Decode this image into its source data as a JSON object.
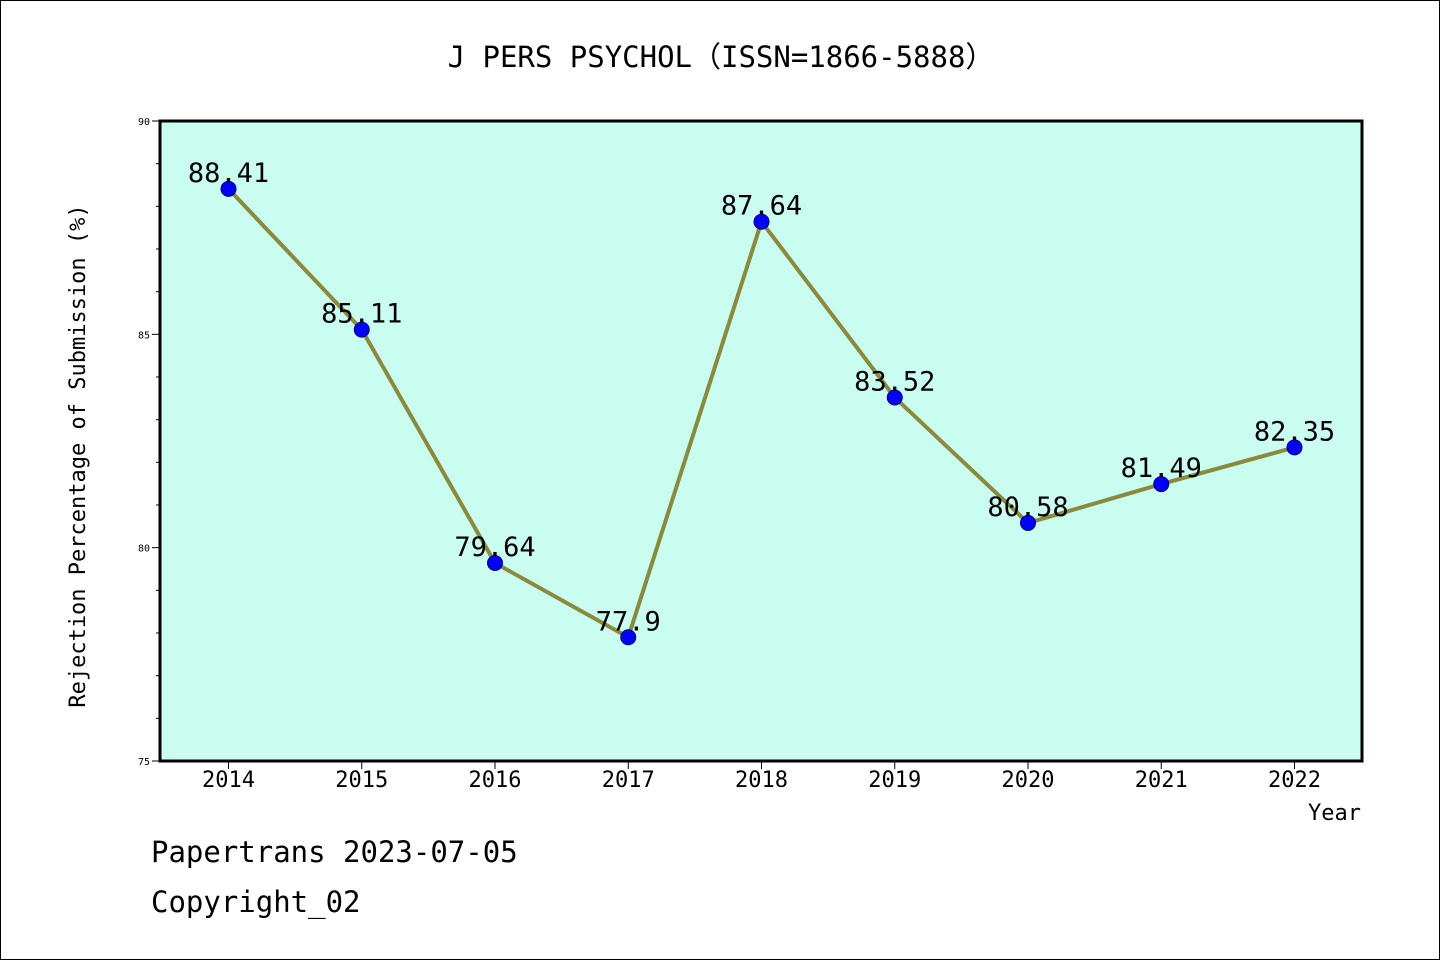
{
  "chart_data": {
    "type": "line",
    "title": "J PERS PSYCHOL（ISSN=1866-5888）",
    "xlabel": "Year",
    "ylabel": "Rejection Percentage of Submission (%)",
    "categories": [
      "2014",
      "2015",
      "2016",
      "2017",
      "2018",
      "2019",
      "2020",
      "2021",
      "2022"
    ],
    "series": [
      {
        "values": [
          88.41,
          85.11,
          79.64,
          77.9,
          87.64,
          83.52,
          80.58,
          81.49,
          82.35
        ],
        "data_labels": [
          "88.41",
          "85.11",
          "79.64",
          "77.9",
          "87.64",
          "83.52",
          "80.58",
          "81.49",
          "82.35"
        ],
        "line_color": "#8b8a3a",
        "marker_color": "#0000ff"
      }
    ],
    "ylim": [
      75,
      90
    ],
    "yticks": [
      "75",
      "80",
      "85",
      "90"
    ],
    "plot_background": "#c8fdf0",
    "grid": false,
    "legend": "none"
  },
  "footer": {
    "line1": "Papertrans 2023-07-05",
    "line2": "Copyright_02"
  }
}
